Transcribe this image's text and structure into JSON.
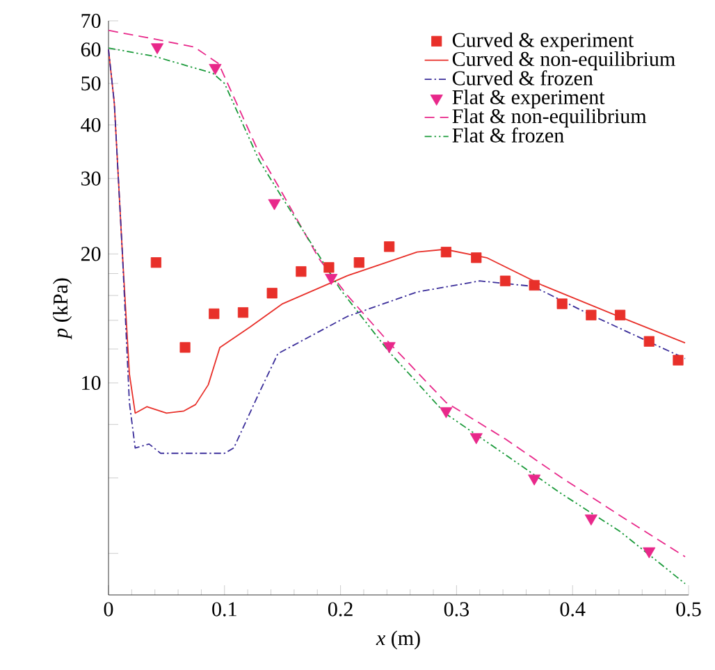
{
  "chart_data": {
    "type": "line",
    "xlabel": "*x* (m)",
    "ylabel": "*p* (kPa)",
    "xlim": [
      0,
      0.5
    ],
    "xticks": [
      0,
      0.1,
      0.2,
      0.3,
      0.4,
      0.5
    ],
    "ylim": [
      3.2,
      70
    ],
    "log": "y",
    "yticks": [
      {
        "value": 4,
        "label": null
      },
      {
        "value": 6,
        "label": null
      },
      {
        "value": 8,
        "label": null
      },
      10,
      {
        "value": 12,
        "label": null
      },
      {
        "value": 14,
        "label": null
      },
      {
        "value": 16,
        "label": null
      },
      {
        "value": 18,
        "label": null
      },
      20,
      30,
      40,
      50,
      60,
      70
    ],
    "grid": false,
    "legend": "top right",
    "series": [
      {
        "name": "Curved & experiment",
        "type": "scatter",
        "marker": "square",
        "color": "#e8302a",
        "x": [
          0.041,
          0.066,
          0.091,
          0.116,
          0.141,
          0.166,
          0.19,
          0.216,
          0.242,
          0.291,
          0.317,
          0.342,
          0.367,
          0.391,
          0.416,
          0.441,
          0.466,
          0.491
        ],
        "values": [
          19.1,
          12.1,
          14.5,
          14.6,
          16.2,
          18.2,
          18.6,
          19.1,
          20.8,
          20.2,
          19.6,
          17.3,
          16.9,
          15.3,
          14.4,
          14.4,
          12.5,
          11.3
        ]
      },
      {
        "name": "Curved & non-equilibrium",
        "line_style": "solid",
        "color": "#e8302a",
        "x": [
          0,
          0.005,
          0.012,
          0.018,
          0.023,
          0.033,
          0.05,
          0.065,
          0.075,
          0.086,
          0.096,
          0.122,
          0.15,
          0.206,
          0.266,
          0.29,
          0.326,
          0.374,
          0.434,
          0.497
        ],
        "values": [
          60,
          45,
          20,
          10.5,
          8.5,
          8.8,
          8.5,
          8.6,
          8.9,
          9.9,
          12.1,
          13.5,
          15.3,
          17.8,
          20.2,
          20.5,
          19.6,
          16.9,
          14.5,
          12.4
        ]
      },
      {
        "name": "Curved & frozen",
        "line_style": "dashdot",
        "color": "#3b2e9a",
        "x": [
          0,
          0.005,
          0.012,
          0.018,
          0.023,
          0.035,
          0.045,
          0.1,
          0.108,
          0.13,
          0.146,
          0.206,
          0.266,
          0.32,
          0.366,
          0.416,
          0.497
        ],
        "values": [
          60,
          45,
          20,
          9,
          7.05,
          7.2,
          6.85,
          6.85,
          7.05,
          9.5,
          11.7,
          14.3,
          16.3,
          17.3,
          16.8,
          14.4,
          11.4
        ]
      },
      {
        "name": "Flat & experiment",
        "type": "scatter",
        "marker": "triangle_down",
        "color": "#e8288a",
        "x": [
          0.042,
          0.092,
          0.143,
          0.192,
          0.242,
          0.291,
          0.317,
          0.367,
          0.416,
          0.466
        ],
        "values": [
          60.8,
          54.4,
          26.3,
          17.6,
          12.2,
          8.6,
          7.48,
          5.99,
          4.83,
          4.05
        ]
      },
      {
        "name": "Flat & non-equilibrium",
        "line_style": "dashed",
        "color": "#e8288a",
        "x": [
          0,
          0.038,
          0.074,
          0.095,
          0.13,
          0.146,
          0.182,
          0.206,
          0.242,
          0.291,
          0.342,
          0.391,
          0.441,
          0.497
        ],
        "values": [
          66.5,
          63.6,
          60.8,
          55.6,
          34.3,
          28.9,
          19.4,
          16,
          12.4,
          9.0,
          7.4,
          6.0,
          4.9,
          3.93
        ]
      },
      {
        "name": "Flat & frozen",
        "line_style": "dashdotdot",
        "color": "#1a9a3a",
        "x": [
          0,
          0.04,
          0.09,
          0.1,
          0.13,
          0.15,
          0.2,
          0.242,
          0.29,
          0.342,
          0.391,
          0.441,
          0.497
        ],
        "values": [
          60.5,
          57.8,
          52.8,
          50,
          33,
          27,
          16.5,
          11.8,
          8.5,
          6.8,
          5.5,
          4.5,
          3.4
        ]
      }
    ]
  }
}
